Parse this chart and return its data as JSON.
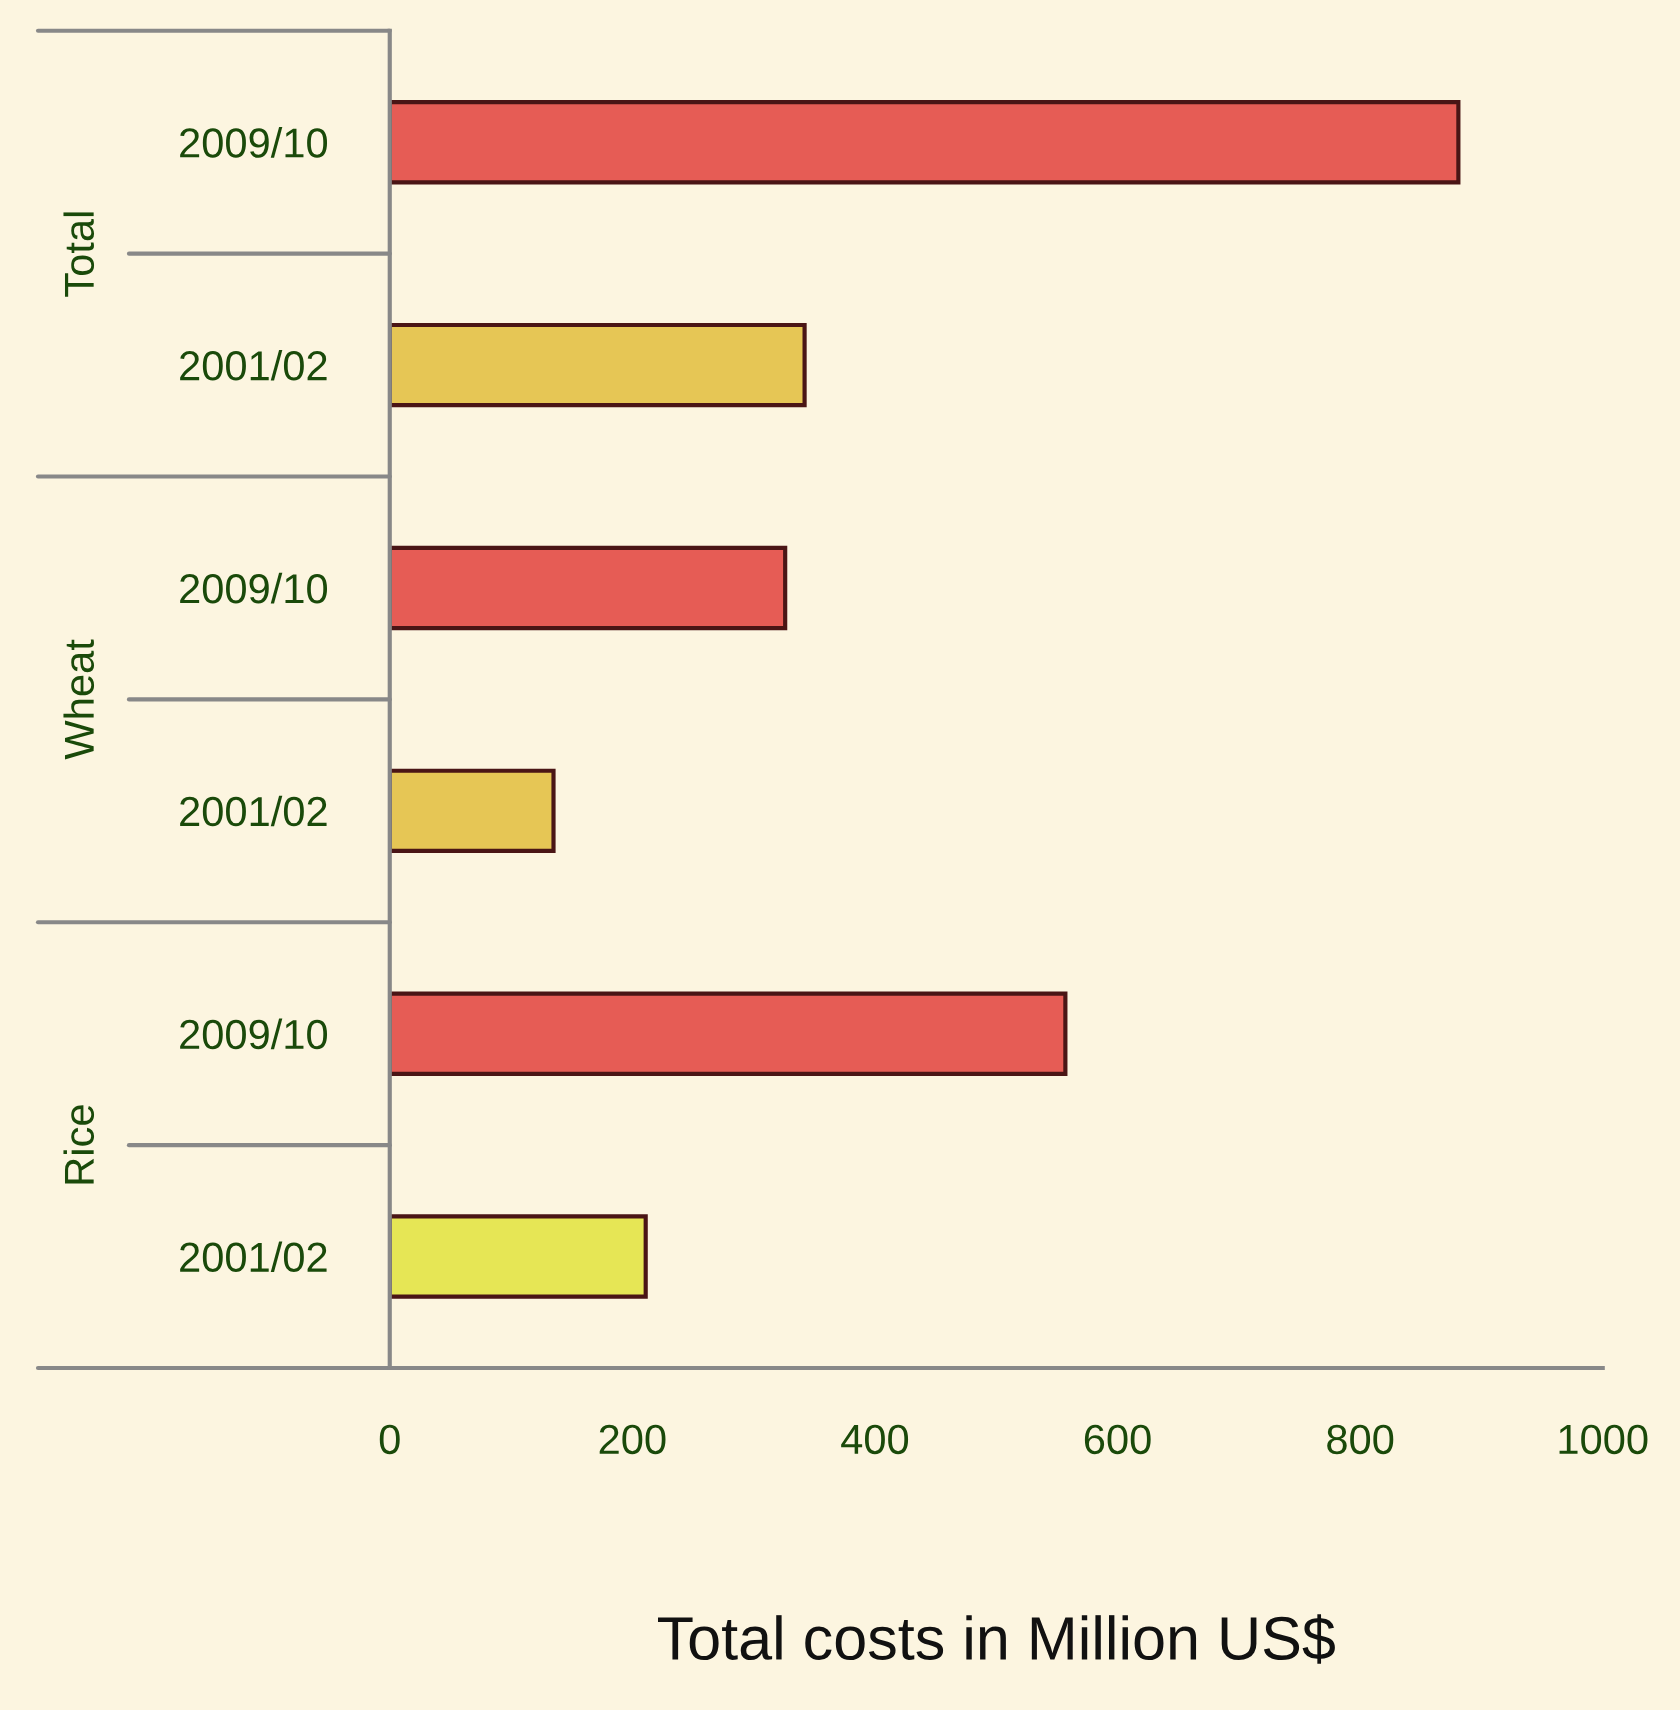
{
  "chart_data": {
    "type": "bar",
    "orientation": "horizontal",
    "categories": [
      "2009/10",
      "2001/02",
      "2009/10",
      "2001/02",
      "2009/10",
      "2001/02"
    ],
    "values": [
      881,
      342,
      326,
      135,
      557,
      211
    ],
    "colors": [
      "#e65c55",
      "#e6c655",
      "#e65c55",
      "#e6c655",
      "#e65c55",
      "#e6e655"
    ],
    "xlim": [
      0,
      1000
    ],
    "xticks": [
      0,
      200,
      400,
      600,
      800,
      1000
    ],
    "xlabel": "Total costs in Million US$",
    "annotations": [
      "Total",
      "Wheat",
      "Rice"
    ],
    "grid": false,
    "legend": false
  }
}
